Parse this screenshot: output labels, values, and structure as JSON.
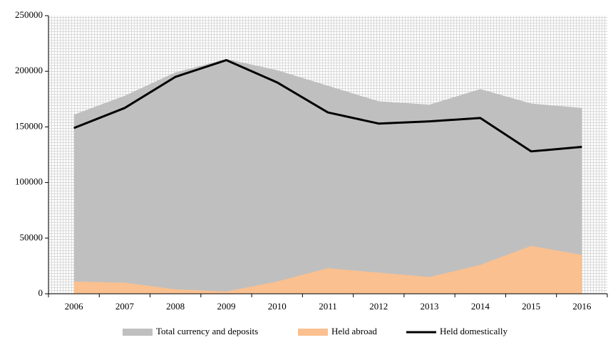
{
  "chart_data": {
    "type": "area",
    "categories": [
      "2006",
      "2007",
      "2008",
      "2009",
      "2010",
      "2011",
      "2012",
      "2013",
      "2014",
      "2015",
      "2016"
    ],
    "series": [
      {
        "name": "Total currency and deposits",
        "color": "#bfbfbf",
        "type": "area",
        "values": [
          161000,
          178000,
          199000,
          211000,
          201000,
          187000,
          173000,
          170000,
          184000,
          171000,
          167000
        ]
      },
      {
        "name": "Held abroad",
        "color": "#fac090",
        "type": "area",
        "values": [
          11000,
          10000,
          4000,
          2000,
          11000,
          23000,
          19000,
          15000,
          26000,
          43000,
          35000
        ]
      },
      {
        "name": "Held domestically",
        "color": "#000000",
        "type": "line",
        "values": [
          149000,
          167000,
          195000,
          210000,
          190000,
          163000,
          153000,
          155000,
          158000,
          128000,
          132000
        ]
      }
    ],
    "ylim": [
      0,
      250000
    ],
    "yticks": [
      0,
      50000,
      100000,
      150000,
      200000,
      250000
    ],
    "legend": "bottom"
  }
}
